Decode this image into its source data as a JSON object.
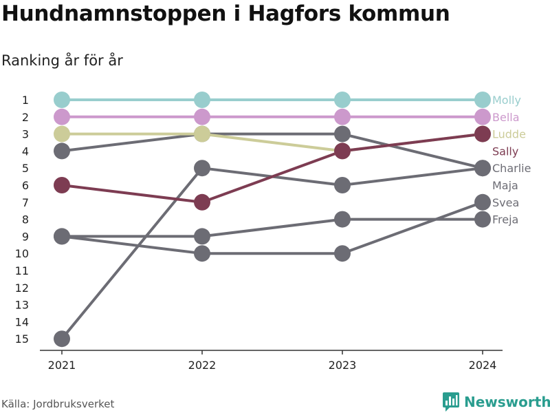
{
  "header": {
    "title": "Hundnamnstoppen i Hagfors kommun",
    "subtitle": "Ranking år för år"
  },
  "footer": {
    "source": "Källa: Jordbruksverket",
    "brand": "Newsworthy",
    "brand_icon": "bar-chart-logo-icon"
  },
  "colors": {
    "axis": "#333333",
    "text": "#222222",
    "brand": "#2a9d8f"
  },
  "chart_data": {
    "type": "line",
    "x": [
      "2021",
      "2022",
      "2023",
      "2024"
    ],
    "y_ticks": [
      "1",
      "2",
      "3",
      "4",
      "5",
      "6",
      "7",
      "8",
      "9",
      "10",
      "11",
      "12",
      "13",
      "14",
      "15"
    ],
    "ylim": [
      1,
      15
    ],
    "y_inverted": true,
    "xlabel": "",
    "ylabel": "",
    "grid": false,
    "legend": "labels at right end of lines",
    "series": [
      {
        "name": "Molly",
        "color": "#98cdcd",
        "values": [
          1,
          1,
          1,
          1
        ]
      },
      {
        "name": "Bella",
        "color": "#cc99cc",
        "values": [
          2,
          2,
          2,
          2
        ]
      },
      {
        "name": "Ludde",
        "color": "#cccc99",
        "values": [
          3,
          3,
          4,
          3
        ]
      },
      {
        "name": "Sally",
        "color": "#7d3c52",
        "values": [
          6,
          7,
          4,
          3
        ]
      },
      {
        "name": "Charlie",
        "color": "#6c6c74",
        "values": [
          4,
          3,
          3,
          5
        ]
      },
      {
        "name": "Maja",
        "color": "#6c6c74",
        "values": [
          15,
          5,
          6,
          5
        ]
      },
      {
        "name": "Svea",
        "color": "#6c6c74",
        "values": [
          9,
          10,
          10,
          7
        ]
      },
      {
        "name": "Freja",
        "color": "#6c6c74",
        "values": [
          9,
          9,
          8,
          8
        ]
      }
    ]
  }
}
